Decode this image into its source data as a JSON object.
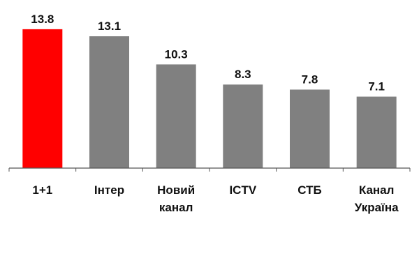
{
  "chart_data": {
    "type": "bar",
    "categories": [
      "1+1",
      "Інтер",
      "Новий канал",
      "ICTV",
      "СТБ",
      "Канал Україна"
    ],
    "category_lines": [
      [
        "1+1"
      ],
      [
        "Інтер"
      ],
      [
        "Новий",
        "канал"
      ],
      [
        "ICTV"
      ],
      [
        "СТБ"
      ],
      [
        "Канал",
        "Україна"
      ]
    ],
    "values": [
      13.8,
      13.1,
      10.3,
      8.3,
      7.8,
      7.1
    ],
    "value_labels": [
      "13.8",
      "13.1",
      "10.3",
      "8.3",
      "7.8",
      "7.1"
    ],
    "bar_colors": [
      "#ff0000",
      "#808080",
      "#808080",
      "#808080",
      "#808080",
      "#808080"
    ],
    "axis_color": "#555555",
    "ylim": [
      0,
      14
    ],
    "grid": false,
    "legend": "none",
    "title": "",
    "xlabel": "",
    "ylabel": ""
  }
}
